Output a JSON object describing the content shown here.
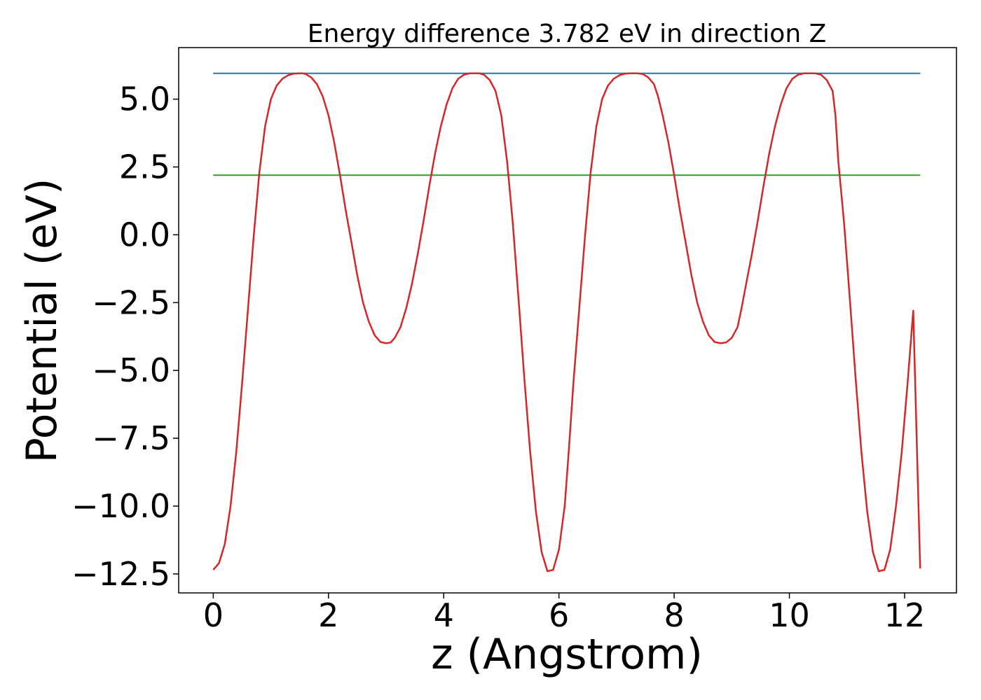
{
  "chart_data": {
    "type": "line",
    "title": "Energy difference 3.782 eV in direction Z",
    "xlabel": "z (Angstrom)",
    "ylabel": "Potential (eV)",
    "xlim": [
      -0.6,
      12.9
    ],
    "ylim": [
      -13.2,
      6.9
    ],
    "x_ticks": [
      0,
      2,
      4,
      6,
      8,
      10,
      12
    ],
    "x_tick_labels": [
      "0",
      "2",
      "4",
      "6",
      "8",
      "10",
      "12"
    ],
    "y_ticks": [
      5.0,
      2.5,
      0.0,
      -2.5,
      -5.0,
      -7.5,
      -10.0,
      -12.5
    ],
    "y_tick_labels": [
      "5.0",
      "2.5",
      "0.0",
      "−2.5",
      "−5.0",
      "−7.5",
      "−10.0",
      "−12.5"
    ],
    "grid": false,
    "series": [
      {
        "color": "#d62728",
        "x": [
          0.0,
          0.1,
          0.2,
          0.3,
          0.4,
          0.5,
          0.6,
          0.7,
          0.8,
          0.9,
          1.0,
          1.1,
          1.2,
          1.3,
          1.4,
          1.5,
          1.55,
          1.6,
          1.7,
          1.8,
          1.9,
          2.0,
          2.1,
          2.2,
          2.3,
          2.4,
          2.5,
          2.6,
          2.7,
          2.8,
          2.9,
          3.0,
          3.08,
          3.15,
          3.25,
          3.35,
          3.45,
          3.55,
          3.65,
          3.75,
          3.85,
          3.95,
          4.05,
          4.15,
          4.25,
          4.35,
          4.45,
          4.55,
          4.62,
          4.7,
          4.8,
          4.9,
          5.0,
          5.1,
          5.2,
          5.3,
          5.4,
          5.5,
          5.6,
          5.7,
          5.8,
          5.9,
          6.0,
          6.1,
          6.17,
          6.25,
          6.35,
          6.45,
          6.55,
          6.65,
          6.75,
          6.85,
          6.95,
          7.05,
          7.15,
          7.25,
          7.35,
          7.45,
          7.55,
          7.65,
          7.72,
          7.8,
          7.9,
          8.0,
          8.1,
          8.2,
          8.3,
          8.4,
          8.5,
          8.6,
          8.7,
          8.8,
          8.9,
          9.0,
          9.1,
          9.17,
          9.25,
          9.35,
          9.45,
          9.55,
          9.65,
          9.75,
          9.85,
          9.95,
          10.05,
          10.15,
          10.25,
          10.35,
          10.45,
          10.55,
          10.65,
          10.75,
          10.8,
          10.85,
          10.95,
          11.05,
          11.15,
          11.25,
          11.35,
          11.45,
          11.55,
          11.65,
          11.75,
          11.85,
          11.95,
          12.05,
          12.15,
          12.27
        ],
        "y": [
          -12.35,
          -12.1,
          -11.4,
          -10.0,
          -8.0,
          -5.5,
          -2.8,
          -0.1,
          2.3,
          4.0,
          5.0,
          5.5,
          5.75,
          5.88,
          5.94,
          5.95,
          5.95,
          5.93,
          5.8,
          5.55,
          5.1,
          4.4,
          3.4,
          2.2,
          0.9,
          -0.3,
          -1.5,
          -2.5,
          -3.2,
          -3.7,
          -3.95,
          -4.0,
          -3.97,
          -3.8,
          -3.4,
          -2.7,
          -1.8,
          -0.7,
          0.5,
          1.8,
          3.0,
          4.0,
          4.8,
          5.4,
          5.75,
          5.9,
          5.95,
          5.95,
          5.95,
          5.9,
          5.7,
          5.3,
          4.4,
          2.7,
          0.4,
          -2.4,
          -5.3,
          -8.0,
          -10.2,
          -11.7,
          -12.4,
          -12.35,
          -11.6,
          -10.0,
          -8.0,
          -5.5,
          -2.8,
          -0.1,
          2.3,
          4.0,
          5.0,
          5.5,
          5.75,
          5.88,
          5.94,
          5.95,
          5.95,
          5.93,
          5.8,
          5.55,
          5.1,
          4.4,
          3.4,
          2.2,
          0.9,
          -0.3,
          -1.5,
          -2.5,
          -3.2,
          -3.7,
          -3.95,
          -4.0,
          -3.97,
          -3.8,
          -3.4,
          -2.7,
          -1.8,
          -0.7,
          0.5,
          1.8,
          3.0,
          4.0,
          4.8,
          5.4,
          5.75,
          5.9,
          5.95,
          5.95,
          5.95,
          5.9,
          5.7,
          5.3,
          4.4,
          2.7,
          0.4,
          -2.4,
          -5.3,
          -8.0,
          -10.2,
          -11.7,
          -12.4,
          -12.35,
          -11.6,
          -10.0,
          -8.0,
          -5.5,
          -2.8,
          -12.3
        ]
      },
      {
        "color": "#1f77b4",
        "x": [
          0.0,
          12.27
        ],
        "y": [
          5.95,
          5.95
        ]
      },
      {
        "color": "#2ca02c",
        "x": [
          0.0,
          12.27
        ],
        "y": [
          2.2,
          2.2
        ]
      }
    ]
  }
}
